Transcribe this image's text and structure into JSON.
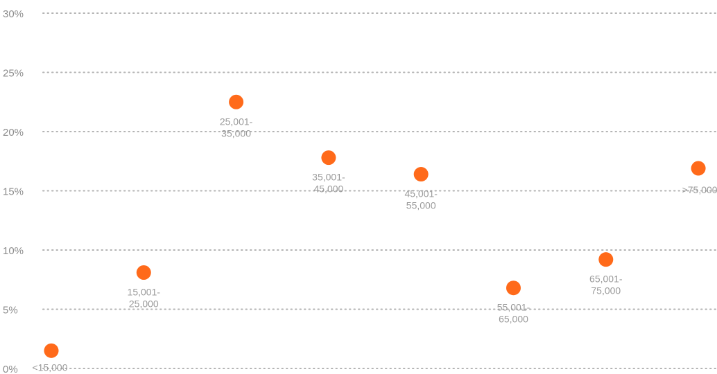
{
  "chart_data": {
    "type": "scatter",
    "title": "",
    "xlabel": "",
    "ylabel": "",
    "ylim": [
      0,
      30
    ],
    "yticks": [
      "0%",
      "5%",
      "10%",
      "15%",
      "20%",
      "25%",
      "30%"
    ],
    "grid": true,
    "legend": "none",
    "marker_color": "#ff6a1a",
    "series": [
      {
        "points": [
          {
            "category": "<15,000",
            "label_lines": [
              "<15,000"
            ],
            "value": 1.5
          },
          {
            "category": "15,001-25,000",
            "label_lines": [
              "15,001-",
              "25,000"
            ],
            "value": 8.1
          },
          {
            "category": "25,001-35,000",
            "label_lines": [
              "25,001-",
              "35,000"
            ],
            "value": 22.5
          },
          {
            "category": "35,001-45,000",
            "label_lines": [
              "35,001-",
              "45,000"
            ],
            "value": 17.8
          },
          {
            "category": "45,001-55,000",
            "label_lines": [
              "45,001-",
              "55,000"
            ],
            "value": 16.4
          },
          {
            "category": "55,001-65,000",
            "label_lines": [
              "55,001-",
              "65,000"
            ],
            "value": 6.8
          },
          {
            "category": "65,001-75,000",
            "label_lines": [
              "65,001-",
              "75,000"
            ],
            "value": 9.2
          },
          {
            "category": ">75,000",
            "label_lines": [
              ">75,000"
            ],
            "value": 16.9
          }
        ]
      }
    ]
  }
}
